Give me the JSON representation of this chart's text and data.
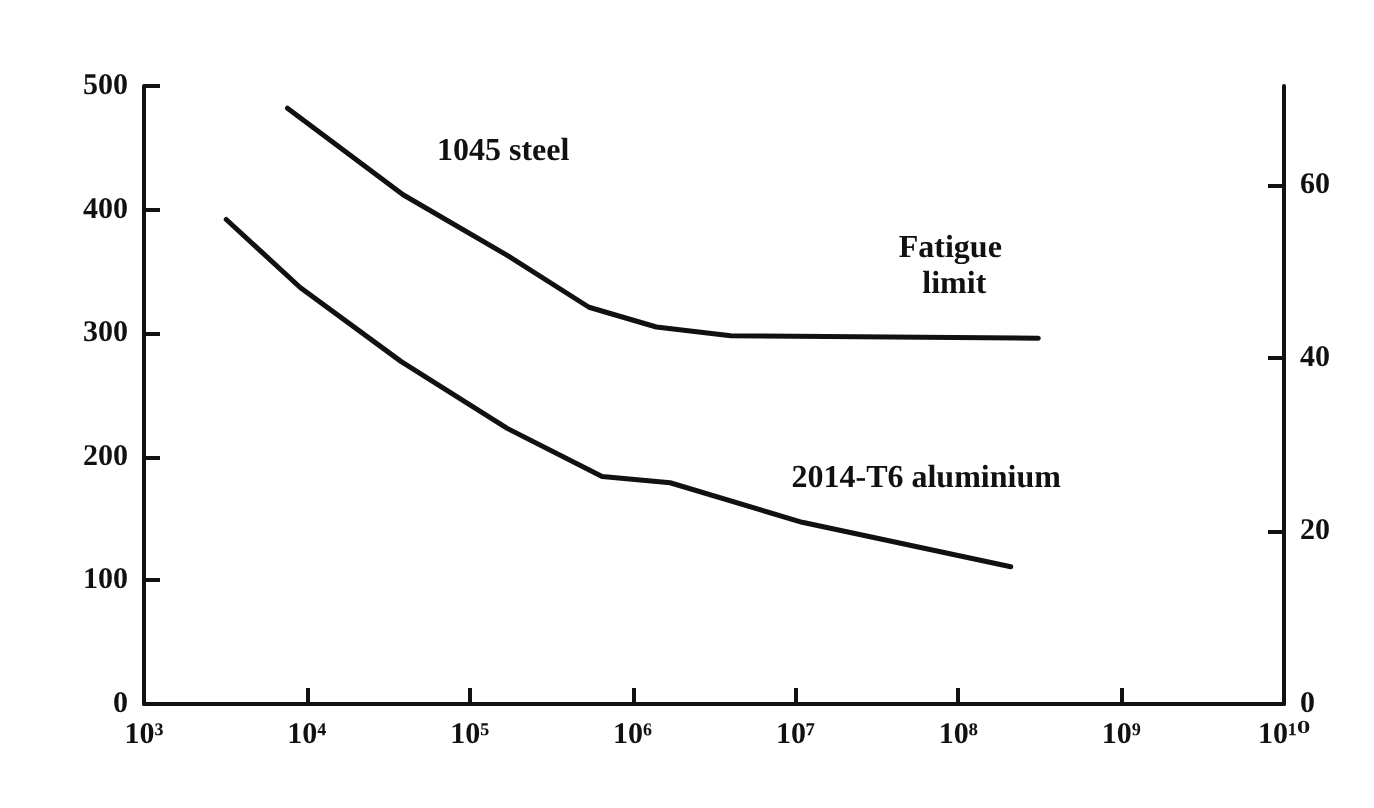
{
  "chart_data": {
    "type": "line",
    "series": [
      {
        "name": "1045 steel",
        "color": "#111111",
        "x": [
          7600,
          39000,
          170000,
          540000,
          1400000,
          4000000,
          310000000
        ],
        "values": [
          482,
          412,
          363,
          321,
          305,
          298,
          296
        ]
      },
      {
        "name": "2014-T6 aluminium",
        "color": "#111111",
        "x": [
          3200,
          9100,
          38000,
          170000,
          650000,
          1700000,
          11000000,
          210000000
        ],
        "values": [
          392,
          337,
          277,
          223,
          184,
          179,
          147,
          111
        ]
      }
    ],
    "log": "x",
    "xlim": [
      1000,
      10000000000
    ],
    "xticks": [
      {
        "value": 1000,
        "label": "10³"
      },
      {
        "value": 10000,
        "label": "10⁴"
      },
      {
        "value": 100000,
        "label": "10⁵"
      },
      {
        "value": 1000000,
        "label": "10⁶"
      },
      {
        "value": 10000000,
        "label": "10⁷"
      },
      {
        "value": 100000000,
        "label": "10⁸"
      },
      {
        "value": 1000000000,
        "label": "10⁹"
      },
      {
        "value": 10000000000,
        "label": "10¹⁰"
      }
    ],
    "ylim": [
      0,
      500
    ],
    "yticks": [
      0,
      100,
      200,
      300,
      400,
      500
    ],
    "y2lim": [
      0,
      71.4
    ],
    "y2ticks": [
      0,
      20,
      40,
      60
    ],
    "annotations": [
      "Fatigue limit"
    ],
    "grid": false,
    "legend": false,
    "marker": "none",
    "line_style": "solid"
  }
}
